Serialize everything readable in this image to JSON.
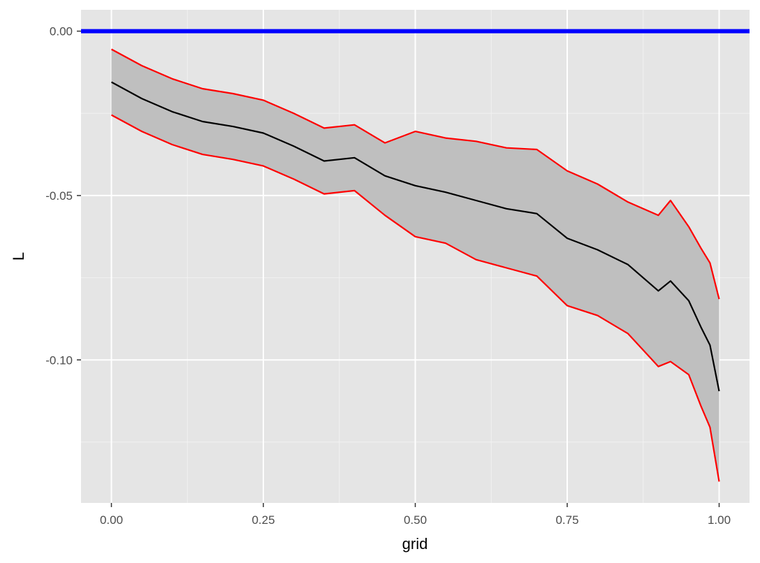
{
  "chart_data": {
    "type": "line",
    "title": "",
    "xlabel": "grid",
    "ylabel": "L",
    "xlim": [
      -0.05,
      1.05
    ],
    "ylim": [
      -0.1435,
      0.0065
    ],
    "x_ticks": [
      0.0,
      0.25,
      0.5,
      0.75,
      1.0
    ],
    "x_tick_labels": [
      "0.00",
      "0.25",
      "0.50",
      "0.75",
      "1.00"
    ],
    "x_minor_ticks": [
      0.125,
      0.375,
      0.625,
      0.875
    ],
    "y_ticks": [
      0.0,
      -0.05,
      -0.1
    ],
    "y_tick_labels": [
      "0.00",
      "-0.05",
      "-0.10"
    ],
    "y_minor_ticks": [
      -0.025,
      -0.075,
      -0.125
    ],
    "grid": true,
    "legend": "none",
    "reference_line": {
      "y": 0.0,
      "color": "#0000ff"
    },
    "band_color": "#bfbfbf",
    "x": [
      0.0,
      0.05,
      0.1,
      0.15,
      0.2,
      0.25,
      0.3,
      0.35,
      0.4,
      0.45,
      0.5,
      0.55,
      0.6,
      0.65,
      0.7,
      0.75,
      0.8,
      0.85,
      0.9,
      0.92,
      0.95,
      0.97,
      0.985,
      1.0
    ],
    "series": [
      {
        "role": "center",
        "color": "#000000",
        "values": [
          -0.0155,
          -0.0205,
          -0.0245,
          -0.0275,
          -0.029,
          -0.031,
          -0.035,
          -0.0395,
          -0.0385,
          -0.044,
          -0.047,
          -0.049,
          -0.0515,
          -0.054,
          -0.0555,
          -0.063,
          -0.0665,
          -0.071,
          -0.079,
          -0.076,
          -0.082,
          -0.09,
          -0.0955,
          -0.1095
        ]
      },
      {
        "role": "upper",
        "color": "#ff0000",
        "values": [
          -0.0055,
          -0.0105,
          -0.0145,
          -0.0175,
          -0.019,
          -0.021,
          -0.025,
          -0.0295,
          -0.0285,
          -0.034,
          -0.0305,
          -0.0325,
          -0.0335,
          -0.0355,
          -0.036,
          -0.0425,
          -0.0465,
          -0.052,
          -0.056,
          -0.0515,
          -0.0595,
          -0.066,
          -0.0705,
          -0.0815
        ]
      },
      {
        "role": "lower",
        "color": "#ff0000",
        "values": [
          -0.0255,
          -0.0305,
          -0.0345,
          -0.0375,
          -0.039,
          -0.041,
          -0.045,
          -0.0495,
          -0.0485,
          -0.056,
          -0.0625,
          -0.0645,
          -0.0695,
          -0.072,
          -0.0745,
          -0.0835,
          -0.0865,
          -0.092,
          -0.102,
          -0.1005,
          -0.1045,
          -0.114,
          -0.1205,
          -0.137
        ]
      }
    ]
  }
}
